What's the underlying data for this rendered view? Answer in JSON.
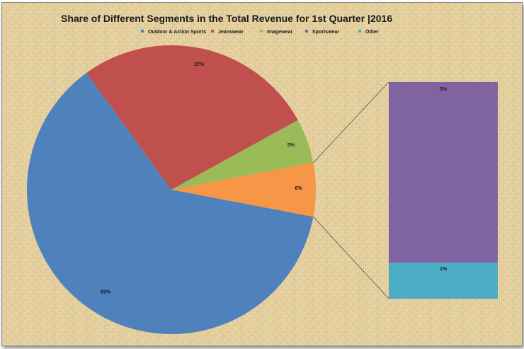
{
  "chart_data": {
    "type": "pie",
    "subtype": "pie-of-bar",
    "title": "Share of Different Segments in the Total Revenue for 1st Quarter |2016",
    "legend_position": "top",
    "slices": [
      {
        "name": "Outdoor & Action Sports",
        "value": 62,
        "label": "62%",
        "color": "#4f81bd"
      },
      {
        "name": "Jeanswear",
        "value": 27,
        "label": "27%",
        "color": "#c0504d"
      },
      {
        "name": "Imagewear",
        "value": 5,
        "label": "5%",
        "color": "#9bbb59"
      },
      {
        "name": "Sportswear",
        "value": 5,
        "label": "5%",
        "color": "#8064a2"
      },
      {
        "name": "Other",
        "value": 1,
        "label": "1%",
        "color": "#4bacc6"
      }
    ],
    "other_slice": {
      "label": "6%",
      "value": 6,
      "color": "#f79646"
    },
    "bar_breakdown": [
      "Sportswear",
      "Other"
    ]
  }
}
